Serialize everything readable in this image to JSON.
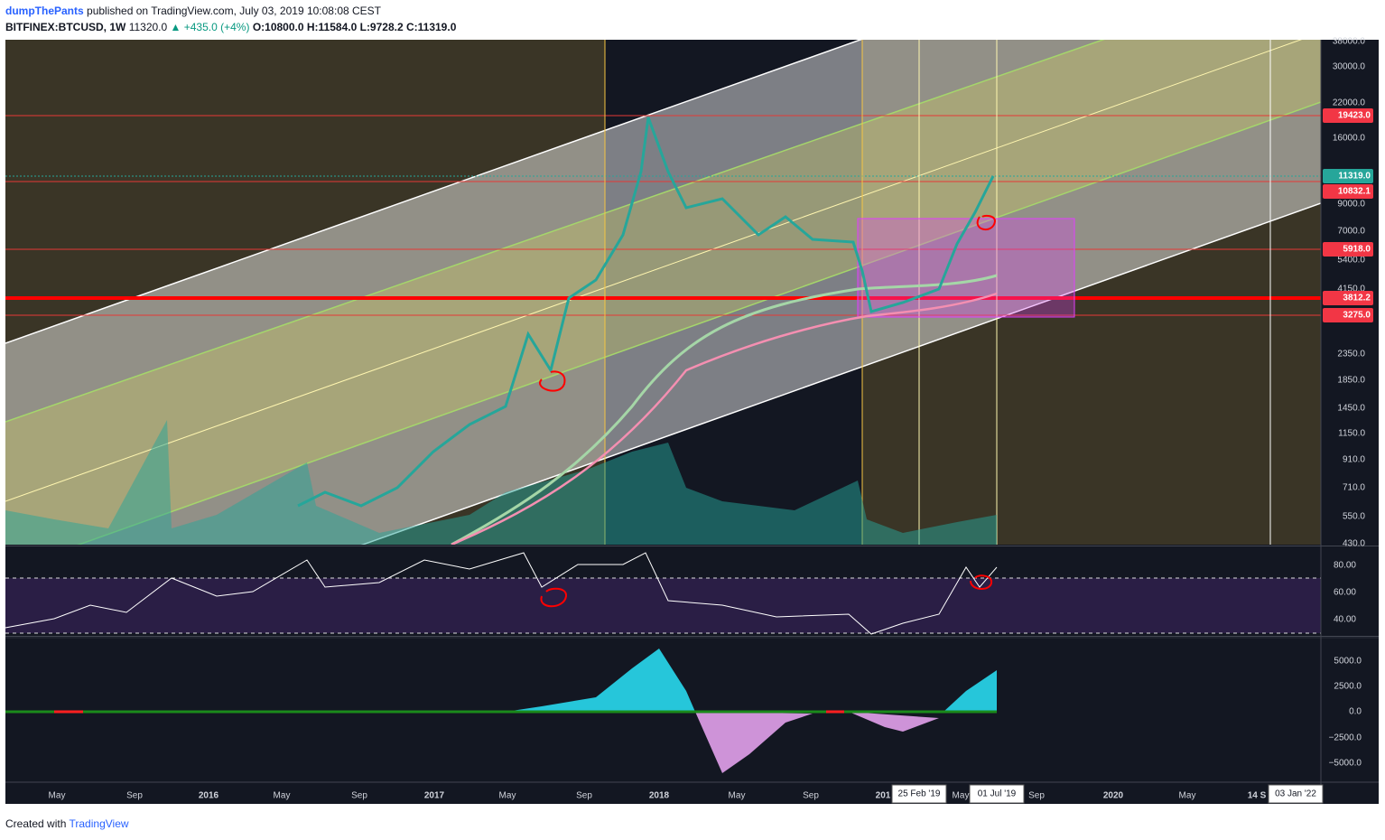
{
  "header": {
    "author": "dumpThePants",
    "published": "published on TradingView.com, July 03, 2019 10:08:08 CEST",
    "symbol": "BITFINEX:BTCUSD, 1W",
    "last": "11320.0",
    "change": "▲ +435.0 (+4%)",
    "ohlc": [
      "O:10800.0",
      "H:11584.0",
      "L:9728.2",
      "C:11319.0"
    ]
  },
  "price_axis": [
    "38000.0",
    "30000.0",
    "22000.0",
    "16000.0",
    "9000.0",
    "7000.0",
    "5400.0",
    "4150.0",
    "2350.0",
    "1850.0",
    "1450.0",
    "1150.0",
    "910.0",
    "710.0",
    "550.0",
    "430.0"
  ],
  "price_markers": [
    "19423.0",
    "11319.0",
    "10832.1",
    "5918.0",
    "3812.2",
    "3275.0"
  ],
  "rsi_axis": [
    "80.00",
    "60.00",
    "40.00"
  ],
  "macd_axis": [
    "5000.0",
    "2500.0",
    "0.0",
    "−2500.0",
    "−5000.0"
  ],
  "time_axis": [
    "May",
    "Sep",
    "2016",
    "May",
    "Sep",
    "2017",
    "May",
    "Sep",
    "2018",
    "May",
    "Sep",
    "201",
    "May",
    "Sep",
    "2020",
    "May",
    "14 S"
  ],
  "time_badges": [
    "25 Feb '19",
    "01 Jul '19",
    "03 Jan '22"
  ],
  "footer": {
    "created": "Created with",
    "brand": "TradingView"
  }
}
